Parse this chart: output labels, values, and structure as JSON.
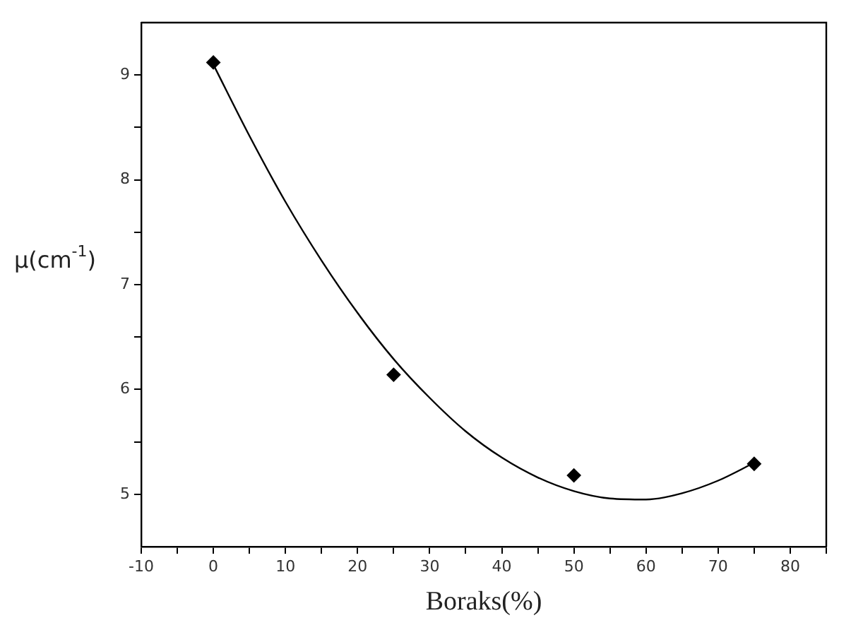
{
  "chart_data": {
    "type": "scatter",
    "xlabel": "Boraks(%)",
    "ylabel": "μ(cm$^{-1}$)",
    "xlim": [
      -10,
      85
    ],
    "ylim": [
      4.5,
      9.5
    ],
    "xticks": [
      -10,
      {
        "value": -5,
        "label": null
      },
      0,
      {
        "value": 5,
        "label": null
      },
      10,
      {
        "value": 15,
        "label": null
      },
      20,
      {
        "value": 25,
        "label": null
      },
      30,
      {
        "value": 35,
        "label": null
      },
      40,
      {
        "value": 45,
        "label": null
      },
      50,
      {
        "value": 55,
        "label": null
      },
      60,
      {
        "value": 65,
        "label": null
      },
      70,
      {
        "value": 75,
        "label": null
      },
      80,
      {
        "value": 85,
        "label": null
      }
    ],
    "yticks": [
      5,
      {
        "value": 5.5,
        "label": null
      },
      6,
      {
        "value": 6.5,
        "label": null
      },
      7,
      {
        "value": 7.5,
        "label": null
      },
      8,
      {
        "value": 8.5,
        "label": null
      },
      9
    ],
    "grid": false,
    "legend": false,
    "marker": "diamond",
    "series": [
      {
        "color": "#000000",
        "x": [
          0,
          25,
          50,
          75
        ],
        "values": [
          9.12,
          6.14,
          5.18,
          5.29
        ]
      },
      {
        "type": "line",
        "color": "#000000",
        "marker": "none",
        "line_style": "solid",
        "x": [
          0,
          5,
          10,
          15,
          20,
          25,
          30,
          35,
          40,
          45,
          50,
          55,
          60,
          65,
          70,
          75
        ],
        "values": [
          9.1,
          8.42,
          7.79,
          7.23,
          6.73,
          6.29,
          5.92,
          5.6,
          5.35,
          5.16,
          5.03,
          4.96,
          4.95,
          5.01,
          5.13,
          5.3
        ]
      }
    ]
  }
}
